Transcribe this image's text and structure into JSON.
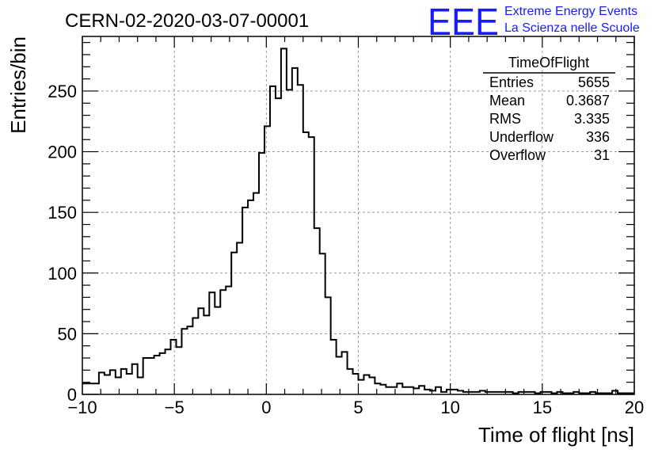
{
  "header": {
    "run_title": "CERN-02-2020-03-07-00001",
    "logo_text": "EEE",
    "project_line1": "Extreme Energy Events",
    "project_line2": "La Scienza nelle Scuole",
    "brand_color": "#1a1aff"
  },
  "stats": {
    "title": "TimeOfFlight",
    "rows": [
      {
        "label": "Entries",
        "value": "5655"
      },
      {
        "label": "Mean",
        "value": "0.3687"
      },
      {
        "label": "RMS",
        "value": "3.335"
      },
      {
        "label": "Underflow",
        "value": "336"
      },
      {
        "label": "Overflow",
        "value": "31"
      }
    ]
  },
  "chart_data": {
    "type": "histogram",
    "xlabel": "Time of flight [ns]",
    "ylabel": "Entries/bin",
    "xlim": [
      -10,
      20
    ],
    "ylim": [
      0,
      295
    ],
    "xticks": [
      -10,
      -5,
      0,
      5,
      10,
      15,
      20
    ],
    "yticks": [
      0,
      50,
      100,
      150,
      200,
      250
    ],
    "grid": true,
    "bin_width": 0.3,
    "bin_edges_start": -10,
    "counts": [
      9,
      9,
      9,
      18,
      16,
      20,
      14,
      21,
      17,
      25,
      14,
      30,
      30,
      32,
      34,
      37,
      45,
      39,
      54,
      56,
      63,
      71,
      65,
      84,
      72,
      86,
      89,
      117,
      125,
      154,
      160,
      166,
      199,
      221,
      254,
      244,
      285,
      251,
      269,
      255,
      216,
      212,
      137,
      116,
      80,
      45,
      31,
      35,
      21,
      17,
      12,
      16,
      14,
      9,
      8,
      6,
      6,
      9,
      6,
      6,
      5,
      7,
      4,
      3,
      6,
      2,
      4,
      4,
      3,
      2,
      2,
      2,
      3,
      2,
      2,
      2,
      2,
      2,
      1,
      2,
      2,
      2,
      1,
      2,
      2,
      1,
      2,
      1,
      1,
      2,
      1,
      1,
      2,
      1,
      1,
      1,
      3,
      1,
      1,
      1
    ],
    "line_color": "#000000"
  }
}
